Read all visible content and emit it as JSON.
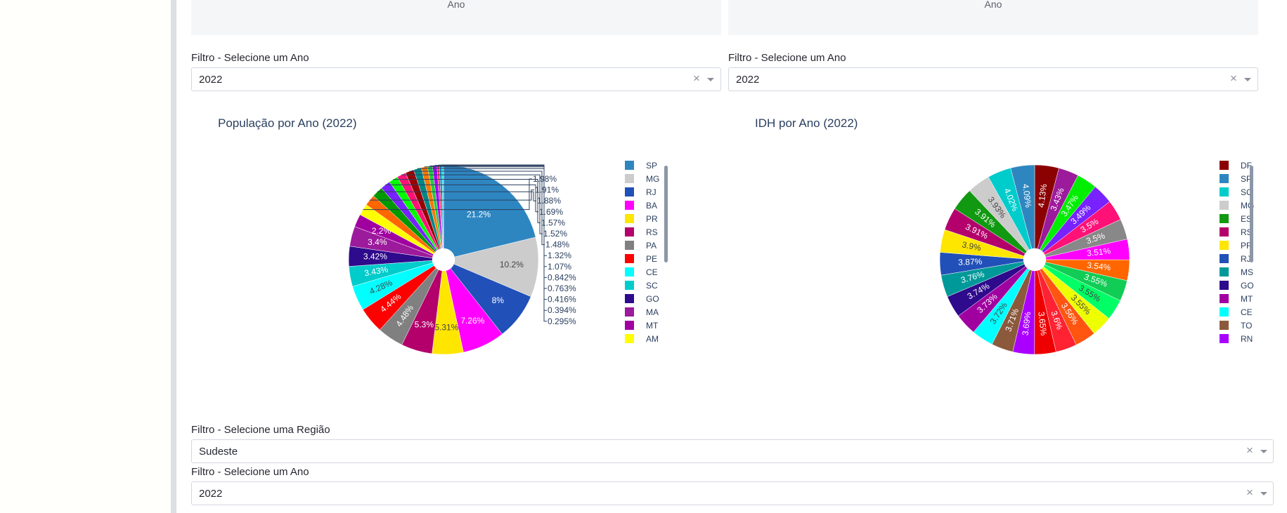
{
  "top_panels": [
    {
      "axis_label": "Ano"
    },
    {
      "axis_label": "Ano"
    }
  ],
  "filters_top": [
    {
      "label": "Filtro - Selecione um Ano",
      "value": "2022"
    },
    {
      "label": "Filtro - Selecione um Ano",
      "value": "2022"
    }
  ],
  "filters_bottom": [
    {
      "label": "Filtro - Selecione uma Região",
      "value": "Sudeste"
    },
    {
      "label": "Filtro - Selecione um Ano",
      "value": "2022"
    }
  ],
  "icons": {
    "clear": "×",
    "dropdown": "chevron-down-icon"
  },
  "chart_data": [
    {
      "type": "pie",
      "title": "População por Ano (2022)",
      "hole": 0.12,
      "slices": [
        {
          "label": "SP",
          "value": 21.2,
          "text": "21.2%",
          "color": "#2e86c1"
        },
        {
          "label": "MG",
          "value": 10.2,
          "text": "10.2%",
          "color": "#cccccc"
        },
        {
          "label": "RJ",
          "value": 8,
          "text": "8%",
          "color": "#2150b8"
        },
        {
          "label": "BA",
          "value": 7.26,
          "text": "7.26%",
          "color": "#ff00ff"
        },
        {
          "label": "PR",
          "value": 5.31,
          "text": "5.31%",
          "color": "#ffe600"
        },
        {
          "label": "RS",
          "value": 5.3,
          "text": "5.3%",
          "color": "#b3006b"
        },
        {
          "label": "PA",
          "value": 4.48,
          "text": "4.48%",
          "color": "#808080"
        },
        {
          "label": "PE",
          "value": 4.44,
          "text": "4.44%",
          "color": "#ff0000"
        },
        {
          "label": "CE",
          "value": 4.28,
          "text": "4.28%",
          "color": "#00ffff"
        },
        {
          "label": "SC",
          "value": 3.43,
          "text": "3.43%",
          "color": "#00cccc"
        },
        {
          "label": "GO",
          "value": 3.42,
          "text": "3.42%",
          "color": "#2e0a8c"
        },
        {
          "label": "MA",
          "value": 3.4,
          "text": "3.4%",
          "color": "#9c1a9c"
        },
        {
          "label": "MT",
          "value": 2.2,
          "text": "2.2%",
          "color": "#a100a1"
        },
        {
          "label": "AM",
          "value": 1.98,
          "text": "1.98%",
          "color": "#ffff00"
        },
        {
          "label": "",
          "value": 1.91,
          "text": "1.91%",
          "color": "#ff6600"
        },
        {
          "label": "",
          "value": 1.88,
          "text": "1.88%",
          "color": "#009900"
        },
        {
          "label": "",
          "value": 1.69,
          "text": "1.69%",
          "color": "#7722ff"
        },
        {
          "label": "",
          "value": 1.57,
          "text": "1.57%",
          "color": "#00ff00"
        },
        {
          "label": "",
          "value": 1.52,
          "text": "1.52%",
          "color": "#ff1177"
        },
        {
          "label": "",
          "value": 1.48,
          "text": "1.48%",
          "color": "#990000"
        },
        {
          "label": "",
          "value": 1.32,
          "text": "1.32%",
          "color": "#008888"
        },
        {
          "label": "",
          "value": 1.07,
          "text": "1.07%",
          "color": "#ff7700"
        },
        {
          "label": "",
          "value": 0.842,
          "text": "0.842%",
          "color": "#22cc44"
        },
        {
          "label": "",
          "value": 0.763,
          "text": "0.763%",
          "color": "#aa00ff"
        },
        {
          "label": "",
          "value": 0.416,
          "text": "0.416%",
          "color": "#ff3366"
        },
        {
          "label": "",
          "value": 0.394,
          "text": "0.394%",
          "color": "#1188cc"
        },
        {
          "label": "",
          "value": 0.295,
          "text": "0.295%",
          "color": "#33dddd"
        }
      ],
      "legend": [
        "SP",
        "MG",
        "RJ",
        "BA",
        "PR",
        "RS",
        "PA",
        "PE",
        "CE",
        "SC",
        "GO",
        "MA",
        "MT",
        "AM"
      ]
    },
    {
      "type": "pie",
      "title": "IDH por Ano (2022)",
      "hole": 0.12,
      "slices": [
        {
          "label": "DF",
          "value": 4.13,
          "text": "4.13%",
          "color": "#8b0000"
        },
        {
          "label": "",
          "value": 3.43,
          "text": "3.43%",
          "color": "#9c1a9c"
        },
        {
          "label": "",
          "value": 3.47,
          "text": "3.47%",
          "color": "#00ee00"
        },
        {
          "label": "",
          "value": 3.49,
          "text": "3.49%",
          "color": "#7722ff"
        },
        {
          "label": "",
          "value": 3.5,
          "text": "3.5%",
          "color": "#ff1177"
        },
        {
          "label": "",
          "value": 3.5,
          "text": "3.5%",
          "color": "#888888"
        },
        {
          "label": "",
          "value": 3.51,
          "text": "3.51%",
          "color": "#ff00ff"
        },
        {
          "label": "",
          "value": 3.54,
          "text": "3.54%",
          "color": "#ff6600"
        },
        {
          "label": "",
          "value": 3.55,
          "text": "3.55%",
          "color": "#11cc55"
        },
        {
          "label": "",
          "value": 3.55,
          "text": "3.55%",
          "color": "#00ff66"
        },
        {
          "label": "",
          "value": 3.55,
          "text": "3.55%",
          "color": "#eeff00"
        },
        {
          "label": "",
          "value": 3.56,
          "text": "3.56%",
          "color": "#ff5511"
        },
        {
          "label": "",
          "value": 3.6,
          "text": "3.6%",
          "color": "#ff2233"
        },
        {
          "label": "",
          "value": 3.65,
          "text": "3.65%",
          "color": "#ee0000"
        },
        {
          "label": "",
          "value": 3.69,
          "text": "3.69%",
          "color": "#aa00ff"
        },
        {
          "label": "TO",
          "value": 3.71,
          "text": "3.71%",
          "color": "#8b5a3c"
        },
        {
          "label": "CE",
          "value": 3.72,
          "text": "3.72%",
          "color": "#00ffff"
        },
        {
          "label": "MT",
          "value": 3.73,
          "text": "3.73%",
          "color": "#a100a1"
        },
        {
          "label": "GO",
          "value": 3.74,
          "text": "3.74%",
          "color": "#2e0a8c"
        },
        {
          "label": "MS",
          "value": 3.76,
          "text": "3.76%",
          "color": "#009999"
        },
        {
          "label": "RJ",
          "value": 3.87,
          "text": "3.87%",
          "color": "#2150b8"
        },
        {
          "label": "PR",
          "value": 3.9,
          "text": "3.9%",
          "color": "#ffe600"
        },
        {
          "label": "RS",
          "value": 3.91,
          "text": "3.91%",
          "color": "#b3006b"
        },
        {
          "label": "ES",
          "value": 3.91,
          "text": "3.91%",
          "color": "#119911"
        },
        {
          "label": "MG",
          "value": 3.93,
          "text": "3.93%",
          "color": "#cccccc"
        },
        {
          "label": "SC",
          "value": 4.02,
          "text": "4.02%",
          "color": "#00cccc"
        },
        {
          "label": "SP",
          "value": 4.09,
          "text": "4.09%",
          "color": "#2e86c1"
        }
      ],
      "legend": [
        "DF",
        "SP",
        "SC",
        "MG",
        "ES",
        "RS",
        "PR",
        "RJ",
        "MS",
        "GO",
        "MT",
        "CE",
        "TO",
        "RN"
      ],
      "legend_colors": [
        "#8b0000",
        "#2e86c1",
        "#00cccc",
        "#cccccc",
        "#119911",
        "#b3006b",
        "#ffe600",
        "#2150b8",
        "#009999",
        "#2e0a8c",
        "#a100a1",
        "#00ffff",
        "#8b5a3c",
        "#aa00ff"
      ]
    }
  ]
}
